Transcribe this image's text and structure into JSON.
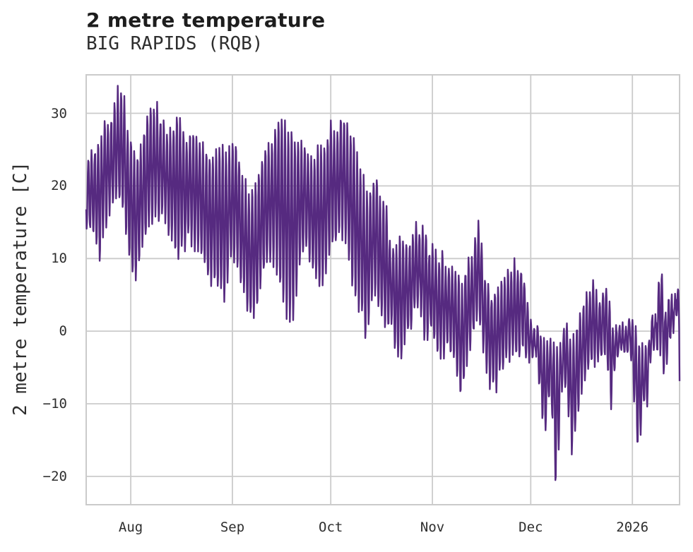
{
  "chart_data": {
    "type": "line",
    "title": "2 metre temperature",
    "subtitle": "BIG RAPIDS (RQB)",
    "ylabel": "2 metre temperature [C]",
    "grid": true,
    "background": "#ffffff",
    "line_color": "#562a80",
    "grid_color": "#cbcbcb",
    "text_color": "#2e2e2e",
    "ylim": [
      -23.9,
      35.3
    ],
    "yticks": [
      {
        "label": "30",
        "value": 30
      },
      {
        "label": "20",
        "value": 20
      },
      {
        "label": "10",
        "value": 10
      },
      {
        "label": "0",
        "value": 0
      },
      {
        "label": "−10",
        "value": -10
      },
      {
        "label": "−20",
        "value": -20
      }
    ],
    "x_range_days": [
      0,
      181
    ],
    "xticks": [
      {
        "label": "Aug",
        "day": 13.6
      },
      {
        "label": "Sep",
        "day": 44.6
      },
      {
        "label": "Oct",
        "day": 74.6
      },
      {
        "label": "Nov",
        "day": 105.6
      },
      {
        "label": "Dec",
        "day": 135.6
      },
      {
        "label": "2026",
        "day": 166.6
      }
    ],
    "series": [
      {
        "name": "2 metre temperature",
        "samples_per_day": 8,
        "daily_envelope": {
          "day": [
            0,
            2,
            4,
            6,
            8,
            10,
            11.5,
            13,
            15,
            17,
            19,
            21,
            23,
            25,
            26.5,
            28,
            29.5,
            31,
            34,
            37,
            40,
            42,
            44,
            46,
            48,
            50,
            52,
            54,
            56,
            58,
            61,
            63,
            65,
            67,
            69,
            71,
            73,
            74.5,
            76,
            78.5,
            80,
            82,
            84,
            85.5,
            87,
            88.5,
            90,
            91.5,
            93,
            94.5,
            96,
            98,
            100,
            101.5,
            103,
            105,
            106.5,
            108,
            110,
            112,
            114.5,
            116.5,
            118.5,
            120,
            121.5,
            123,
            125,
            127,
            129,
            131,
            133,
            135,
            136.5,
            138,
            139.7,
            141.5,
            143.3,
            145,
            146.5,
            148.3,
            150.5,
            152.5,
            154.5,
            156.5,
            158.5,
            160,
            161.5,
            163,
            164.5,
            166,
            168.3,
            170,
            171,
            172.5,
            174,
            175.2,
            176.3,
            178,
            179.5,
            180.4,
            181
          ],
          "tmax": [
            24,
            25,
            26,
            30.3,
            29,
            33.5,
            32.3,
            27,
            24.5,
            26,
            30.8,
            31.2,
            29.5,
            27.5,
            28,
            32,
            26.5,
            27,
            27,
            25,
            24,
            25,
            26.3,
            25.5,
            21,
            18,
            21,
            24,
            25.3,
            28.7,
            28.5,
            27.5,
            26,
            25.5,
            24,
            25.5,
            26,
            28.6,
            27,
            30,
            28,
            26.5,
            21.5,
            20,
            19,
            21,
            18.5,
            18.3,
            11.5,
            11.6,
            13,
            12,
            14,
            13.8,
            13.5,
            11,
            10.8,
            10.5,
            9,
            9,
            6,
            10,
            12,
            15.3,
            8,
            5.5,
            5.5,
            6.5,
            8,
            9.4,
            8.5,
            3,
            0.5,
            0,
            -0.5,
            -1.5,
            -2,
            -1,
            0.5,
            -1,
            2,
            5,
            7.3,
            5,
            6.8,
            2,
            0.5,
            1.5,
            0,
            2,
            -1,
            -2.5,
            -3,
            1.5,
            2,
            12.5,
            2,
            6,
            4,
            6,
            3
          ],
          "tmin": [
            15.5,
            13.8,
            10,
            15,
            16.5,
            17.5,
            16,
            10,
            7.5,
            11,
            14,
            15.5,
            16.5,
            14,
            13,
            9,
            11.5,
            12,
            11.8,
            8,
            5.5,
            4.5,
            9.5,
            8.9,
            5,
            1.2,
            3,
            7,
            10,
            8,
            1.7,
            1,
            8,
            11.8,
            9,
            5.4,
            8,
            11,
            12,
            14,
            10,
            5,
            2,
            -1.2,
            3,
            5,
            2.5,
            0.6,
            1,
            -3.7,
            -3.4,
            0,
            2,
            4.1,
            -1.2,
            0,
            -1.4,
            -4.3,
            -2,
            -3.7,
            -9.5,
            -3,
            0,
            1,
            -4,
            -6.9,
            -8,
            -5,
            -4,
            -2.5,
            -3,
            -3.5,
            -3.5,
            -5,
            -15.3,
            -8,
            -21.3,
            -9,
            -7,
            -17.4,
            -9,
            -6,
            -3.5,
            -4,
            -3,
            -11.5,
            -4,
            -2.5,
            -3.5,
            -3,
            -16.6,
            -11,
            -10.5,
            -2.5,
            -2,
            -3,
            -5.2,
            -1,
            0.5,
            2,
            -9.3
          ]
        }
      }
    ]
  }
}
